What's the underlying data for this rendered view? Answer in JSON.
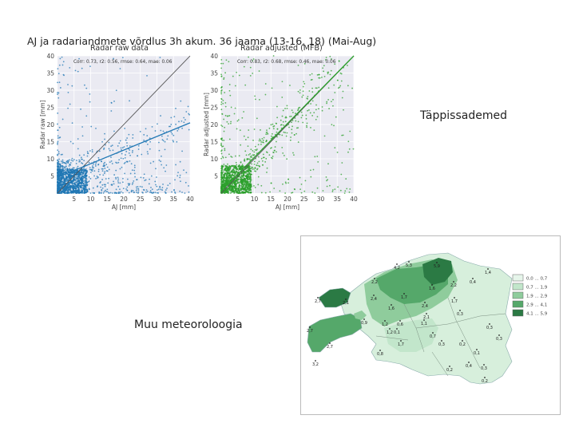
{
  "slide": {
    "title": "AJ ja radariandmete võrdlus 3h akum. 36 jaama (13-16, 18) (Mai-Aug)",
    "caption_right": "Täppissademed",
    "caption_left": "Muu meteoroloogia"
  },
  "chart_data": [
    {
      "type": "scatter",
      "title": "Radar raw data",
      "stats": "Corr: 0.73, r2: 0.56, rmse: 0.64, mae: 0.06",
      "xlabel": "AJ [mm]",
      "ylabel": "Radar raw [mm]",
      "xlim": [
        0,
        40
      ],
      "ylim": [
        0,
        40
      ],
      "xticks": [
        "5",
        "10",
        "15",
        "20",
        "25",
        "30",
        "35",
        "40"
      ],
      "yticks": [
        "5",
        "10",
        "15",
        "20",
        "25",
        "30",
        "35",
        "40"
      ],
      "color": "#1f77b4",
      "grid": true,
      "lines": [
        {
          "kind": "identity",
          "x": [
            0,
            40
          ],
          "y": [
            0,
            40
          ],
          "color": "#555555"
        },
        {
          "kind": "fit",
          "x": [
            0,
            40
          ],
          "y": [
            4.6,
            20.5
          ],
          "color": "#1f77b4"
        }
      ]
    },
    {
      "type": "scatter",
      "title": "Radar adjusted (MFB)",
      "stats": "Corr: 0.83, r2: 0.68, rmse: 0.46, mae: 0.06",
      "xlabel": "AJ [mm]",
      "ylabel": "Radar adjusted [mm]",
      "xlim": [
        0,
        40
      ],
      "ylim": [
        0,
        40
      ],
      "xticks": [
        "5",
        "10",
        "15",
        "20",
        "25",
        "30",
        "35",
        "40"
      ],
      "yticks": [
        "5",
        "10",
        "15",
        "20",
        "25",
        "30",
        "35",
        "40"
      ],
      "color": "#2ca02c",
      "grid": true,
      "lines": [
        {
          "kind": "identity",
          "x": [
            0,
            40
          ],
          "y": [
            0,
            40
          ],
          "color": "#555555"
        },
        {
          "kind": "fit",
          "x": [
            0,
            40
          ],
          "y": [
            0.6,
            40
          ],
          "color": "#2ca02c"
        }
      ]
    }
  ],
  "map": {
    "legend": [
      {
        "label": "0,0 ... 0,7",
        "color": "#e6f5ea"
      },
      {
        "label": "0,7 ... 1,9",
        "color": "#c2e6cb"
      },
      {
        "label": "1,9 ... 2,9",
        "color": "#8fcc9c"
      },
      {
        "label": "2,9 ... 4,1",
        "color": "#55a86a"
      },
      {
        "label": "4,1 ... 5,9",
        "color": "#2b7a44"
      }
    ],
    "labels": [
      {
        "t": "4,2",
        "x": 496,
        "y": 334
      },
      {
        "t": "5,3",
        "x": 511,
        "y": 331
      },
      {
        "t": "5,9",
        "x": 546,
        "y": 332
      },
      {
        "t": "2,2",
        "x": 468,
        "y": 352
      },
      {
        "t": "0,4",
        "x": 591,
        "y": 352
      },
      {
        "t": "1,4",
        "x": 610,
        "y": 340
      },
      {
        "t": "2,2",
        "x": 567,
        "y": 356
      },
      {
        "t": "1,6",
        "x": 540,
        "y": 360
      },
      {
        "t": "2,4",
        "x": 467,
        "y": 373
      },
      {
        "t": "1,7",
        "x": 505,
        "y": 371
      },
      {
        "t": "2,4",
        "x": 531,
        "y": 382
      },
      {
        "t": "1,7",
        "x": 568,
        "y": 376
      },
      {
        "t": "2,7",
        "x": 397,
        "y": 376
      },
      {
        "t": "2,1",
        "x": 432,
        "y": 378
      },
      {
        "t": "1,6",
        "x": 489,
        "y": 385
      },
      {
        "t": "0,3",
        "x": 575,
        "y": 392
      },
      {
        "t": "0,9",
        "x": 455,
        "y": 403
      },
      {
        "t": "1,2",
        "x": 481,
        "y": 405
      },
      {
        "t": "0,6",
        "x": 500,
        "y": 405
      },
      {
        "t": "1,1",
        "x": 530,
        "y": 404
      },
      {
        "t": "2,1",
        "x": 533,
        "y": 396
      },
      {
        "t": "0,3",
        "x": 612,
        "y": 409
      },
      {
        "t": "1,2",
        "x": 487,
        "y": 415
      },
      {
        "t": "0,1",
        "x": 496,
        "y": 415
      },
      {
        "t": "0,7",
        "x": 541,
        "y": 420
      },
      {
        "t": "0,3",
        "x": 624,
        "y": 423
      },
      {
        "t": "2,7",
        "x": 387,
        "y": 413
      },
      {
        "t": "2,7",
        "x": 412,
        "y": 433
      },
      {
        "t": "1,7",
        "x": 501,
        "y": 430
      },
      {
        "t": "0,3",
        "x": 552,
        "y": 430
      },
      {
        "t": "0,2",
        "x": 578,
        "y": 430
      },
      {
        "t": "0,1",
        "x": 596,
        "y": 441
      },
      {
        "t": "0,8",
        "x": 475,
        "y": 442
      },
      {
        "t": "0,4",
        "x": 586,
        "y": 457
      },
      {
        "t": "0,3",
        "x": 605,
        "y": 460
      },
      {
        "t": "0,2",
        "x": 562,
        "y": 462
      },
      {
        "t": "0,2",
        "x": 606,
        "y": 476
      },
      {
        "t": "3,2",
        "x": 394,
        "y": 455
      }
    ]
  }
}
